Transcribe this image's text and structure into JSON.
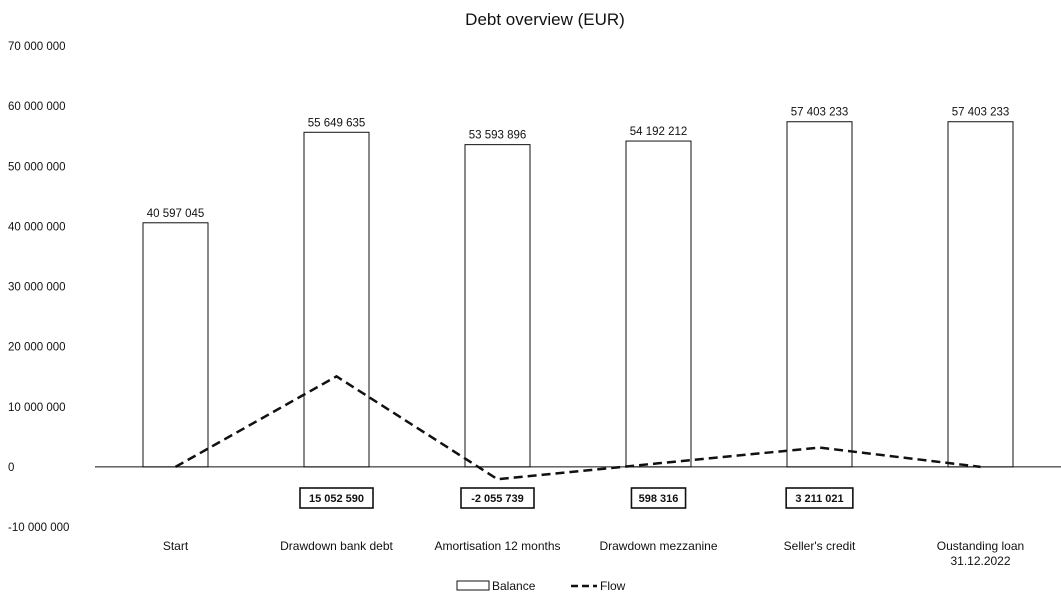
{
  "chart_data": {
    "type": "bar",
    "title": "Debt overview (EUR)",
    "categories": [
      "Start",
      "Drawdown bank debt",
      "Amortisation 12 months",
      "Drawdown mezzanine",
      "Seller's credit",
      "Oustanding loan 31.12.2022"
    ],
    "category_lines": [
      [
        "Start"
      ],
      [
        "Drawdown bank debt"
      ],
      [
        "Amortisation 12 months"
      ],
      [
        "Drawdown mezzanine"
      ],
      [
        "Seller's credit"
      ],
      [
        "Oustanding loan",
        "31.12.2022"
      ]
    ],
    "series": [
      {
        "name": "Balance",
        "type": "bar",
        "values": [
          40597045,
          55649635,
          53593896,
          54192212,
          57403233,
          57403233
        ],
        "labels": [
          "40 597 045",
          "55 649 635",
          "53 593 896",
          "54 192 212",
          "57 403 233",
          "57 403 233"
        ]
      },
      {
        "name": "Flow",
        "type": "line",
        "style": "dashed",
        "values": [
          0,
          15052590,
          -2055739,
          598316,
          3211021,
          0
        ],
        "labels": [
          "",
          "15 052 590",
          "-2 055 739",
          "598 316",
          "3 211 021",
          ""
        ]
      }
    ],
    "ylim": [
      -10000000,
      70000000
    ],
    "yticks": [
      -10000000,
      0,
      10000000,
      20000000,
      30000000,
      40000000,
      50000000,
      60000000,
      70000000
    ],
    "ytick_labels": [
      "-10 000 000",
      "0",
      "10 000 000",
      "20 000 000",
      "30 000 000",
      "40 000 000",
      "50 000 000",
      "60 000 000",
      "70 000 000"
    ],
    "xlabel": "",
    "ylabel": "",
    "grid": false,
    "legend_position": "bottom"
  }
}
